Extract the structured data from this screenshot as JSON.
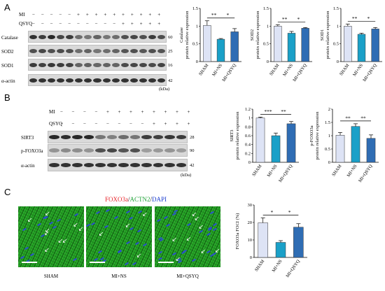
{
  "panel_a": {
    "letter": "A",
    "row_labels": [
      "MI",
      "QSYQ"
    ],
    "mi_signs": [
      "−",
      "−",
      "−",
      "−",
      "−",
      "+",
      "+",
      "+",
      "+",
      "+",
      "+",
      "+",
      "+",
      "+",
      "+"
    ],
    "qsyq_signs": [
      "−",
      "−",
      "−",
      "−",
      "−",
      "−",
      "−",
      "−",
      "−",
      "−",
      "+",
      "+",
      "+",
      "+",
      "+"
    ],
    "blot_labels": [
      "Catalase",
      "SOD2",
      "SOD1",
      "α-actin"
    ],
    "mw": [
      "60",
      "25",
      "16",
      "42"
    ],
    "kda": "(kDa)"
  },
  "panel_b": {
    "letter": "B",
    "row_labels": [
      "MI",
      "QSYQ"
    ],
    "mi_signs": [
      "−",
      "−",
      "−",
      "−",
      "+",
      "+",
      "+",
      "+",
      "+",
      "+",
      "+",
      "+"
    ],
    "qsyq_signs": [
      "−",
      "−",
      "−",
      "−",
      "−",
      "−",
      "−",
      "−",
      "+",
      "+",
      "+",
      "+"
    ],
    "blot_labels": [
      "SIRT3",
      "p-FOXO3a",
      "α-actin"
    ],
    "mw": [
      "28",
      "90",
      "42"
    ],
    "kda": "(kDa)"
  },
  "panel_c": {
    "letter": "C",
    "title_parts": [
      "FOXO3a",
      "/",
      "ACTN2",
      "/",
      "DAPI"
    ],
    "conditions": [
      "SHAM",
      "MI+NS",
      "MI+QSYQ"
    ]
  },
  "colors": {
    "sham": "#dde3f5",
    "mi_ns": "#1aa0c8",
    "mi_qsyq": "#2f6db4",
    "foxo3a_red": "#e8262d",
    "actn2_green": "#22a33a",
    "dapi_blue": "#1e3fd0"
  },
  "chart_data": [
    {
      "type": "bar",
      "categories": [
        "SHAM",
        "MI+NS",
        "MI+QSYQ"
      ],
      "values": [
        1.02,
        0.63,
        0.84
      ],
      "errors": [
        0.13,
        0.02,
        0.09
      ],
      "ylabel": "Catalase protein relative expression",
      "ylim": [
        0,
        1.5
      ],
      "yticks": [
        "0",
        "0.5",
        "1",
        "1.5"
      ],
      "significance": [
        {
          "pair": [
            0,
            1
          ],
          "label": "**"
        },
        {
          "pair": [
            1,
            2
          ],
          "label": "*"
        }
      ]
    },
    {
      "type": "bar",
      "categories": [
        "SHAM",
        "MI+NS",
        "MI+QSYQ"
      ],
      "values": [
        1.0,
        0.8,
        0.94
      ],
      "errors": [
        0.04,
        0.05,
        0.02
      ],
      "ylabel": "SOD2 protein relative expression",
      "ylim": [
        0,
        1.5
      ],
      "yticks": [
        "0",
        "0.5",
        "1",
        "1.5"
      ],
      "significance": [
        {
          "pair": [
            0,
            1
          ],
          "label": "**"
        },
        {
          "pair": [
            1,
            2
          ],
          "label": "*"
        }
      ]
    },
    {
      "type": "bar",
      "categories": [
        "SHAM",
        "MI+NS",
        "MI+QSYQ"
      ],
      "values": [
        1.0,
        0.77,
        0.92
      ],
      "errors": [
        0.06,
        0.03,
        0.04
      ],
      "ylabel": "SOD1 protein relative expression",
      "ylim": [
        0,
        1.5
      ],
      "yticks": [
        "0",
        "0.5",
        "1",
        "1.5"
      ],
      "significance": [
        {
          "pair": [
            0,
            1
          ],
          "label": "**"
        },
        {
          "pair": [
            1,
            2
          ],
          "label": "*"
        }
      ]
    },
    {
      "type": "bar",
      "categories": [
        "SHAM",
        "MI+NS",
        "MI+QSYQ"
      ],
      "values": [
        1.0,
        0.6,
        0.87
      ],
      "errors": [
        0.02,
        0.06,
        0.05
      ],
      "ylabel": "SIRT3 protein relative expression",
      "ylim": [
        0,
        1.2
      ],
      "yticks": [
        "0",
        "0.2",
        "0.4",
        "0.6",
        "0.8",
        "1",
        "1.2"
      ],
      "significance": [
        {
          "pair": [
            0,
            1
          ],
          "label": "***"
        },
        {
          "pair": [
            1,
            2
          ],
          "label": "**"
        }
      ]
    },
    {
      "type": "bar",
      "categories": [
        "SHAM",
        "MI+NS",
        "MI+QSYQ"
      ],
      "values": [
        1.02,
        1.35,
        0.9
      ],
      "errors": [
        0.1,
        0.1,
        0.13
      ],
      "ylabel": "p-FOXO3a protein relative expression",
      "ylim": [
        0,
        2.0
      ],
      "yticks": [
        "0",
        "0.5",
        "1",
        "1.5",
        "2"
      ],
      "significance": [
        {
          "pair": [
            0,
            1
          ],
          "label": "**"
        },
        {
          "pair": [
            1,
            2
          ],
          "label": "**"
        }
      ]
    },
    {
      "type": "bar",
      "categories": [
        "SHAM",
        "MI+NS",
        "MI+QSYQ"
      ],
      "values": [
        19.8,
        8.6,
        17.3
      ],
      "errors": [
        2.8,
        1.0,
        2.0
      ],
      "ylabel": "FOXO3a FOCI (%)",
      "ylim": [
        0,
        30
      ],
      "yticks": [
        "0",
        "10",
        "20",
        "30"
      ],
      "significance": [
        {
          "pair": [
            0,
            1
          ],
          "label": "*"
        },
        {
          "pair": [
            1,
            2
          ],
          "label": "*"
        }
      ]
    }
  ]
}
